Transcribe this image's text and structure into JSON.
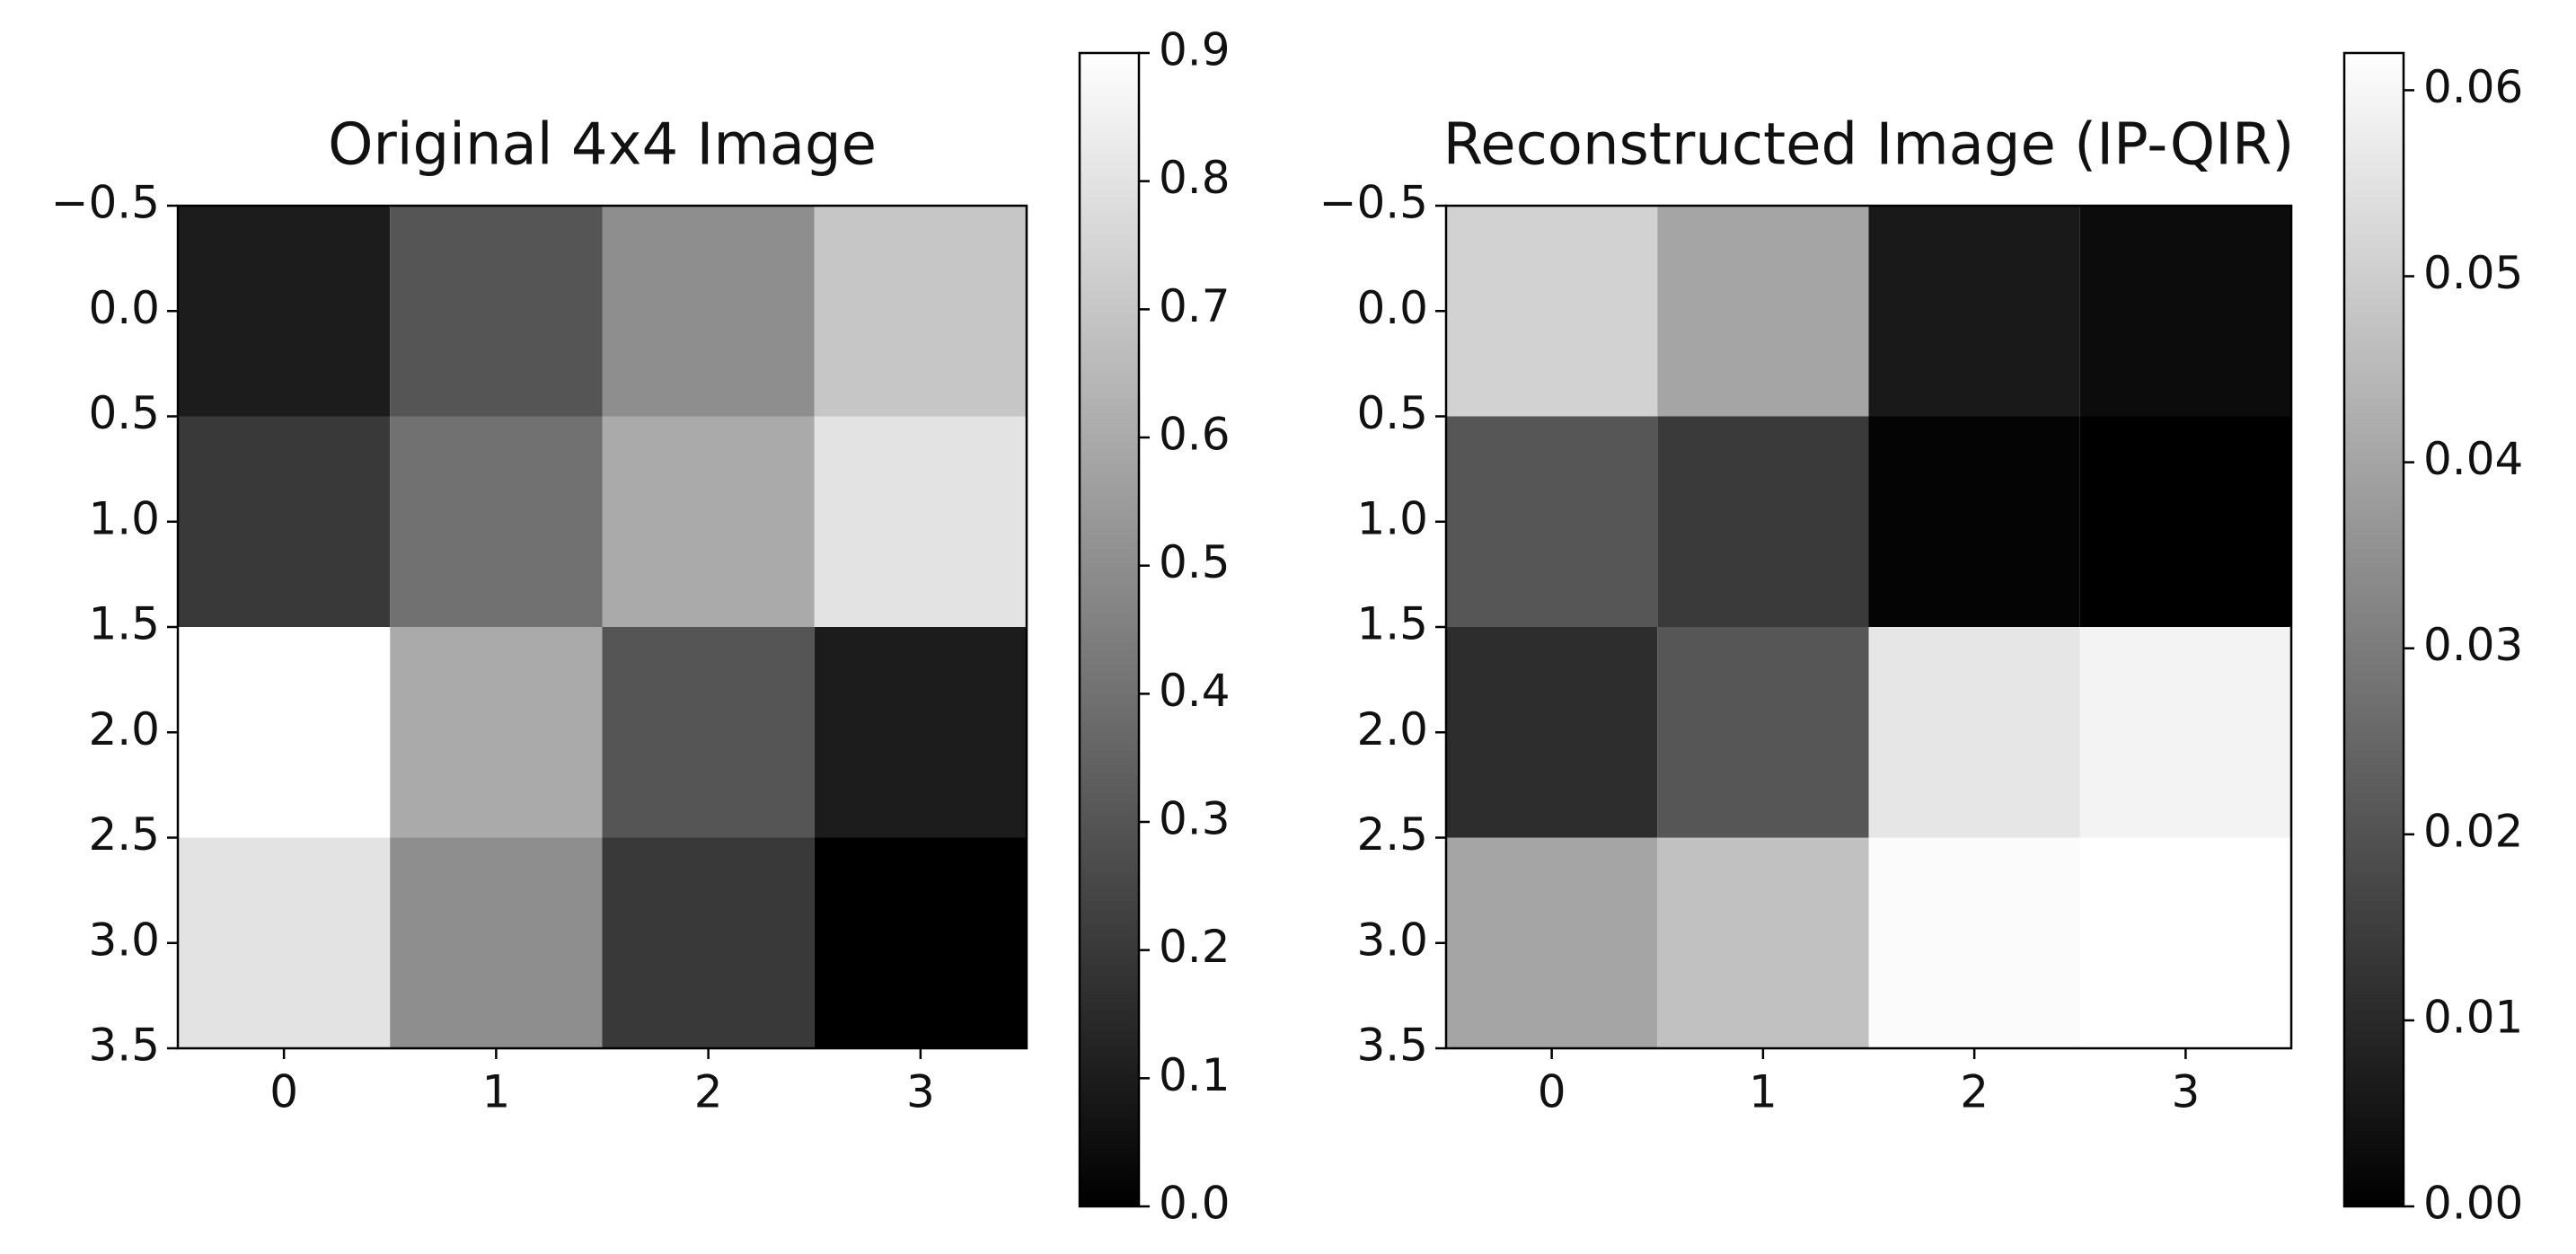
{
  "chart_data": [
    {
      "type": "heatmap",
      "title": "Original 4x4 Image",
      "colormap": "gray",
      "values": [
        [
          0.1,
          0.3,
          0.5,
          0.7
        ],
        [
          0.2,
          0.4,
          0.6,
          0.8
        ],
        [
          0.9,
          0.6,
          0.3,
          0.1
        ],
        [
          0.8,
          0.5,
          0.2,
          0.0
        ]
      ],
      "xlim": [
        -0.5,
        3.5
      ],
      "ylim": [
        3.5,
        -0.5
      ],
      "xticks": [
        0,
        1,
        2,
        3
      ],
      "yticks": [
        {
          "value": -0.5,
          "label": "−0.5"
        },
        {
          "value": 0,
          "label": "0.0"
        },
        0.5,
        {
          "value": 1,
          "label": "1.0"
        },
        1.5,
        {
          "value": 2,
          "label": "2.0"
        },
        2.5,
        {
          "value": 3,
          "label": "3.0"
        },
        3.5
      ],
      "clim": [
        0,
        0.9
      ],
      "cticks": [
        {
          "value": 0,
          "label": "0.0"
        },
        0.1,
        0.2,
        0.3,
        0.4,
        0.5,
        0.6,
        0.7,
        0.8,
        0.9
      ]
    },
    {
      "type": "heatmap",
      "title": "Reconstructed Image (IP-QIR)",
      "colormap": "gray",
      "values": [
        [
          0.051,
          0.04,
          0.006,
          0.003
        ],
        [
          0.021,
          0.014,
          0.001,
          0.0
        ],
        [
          0.011,
          0.021,
          0.056,
          0.059
        ],
        [
          0.04,
          0.047,
          0.061,
          0.062
        ]
      ],
      "xlim": [
        -0.5,
        3.5
      ],
      "ylim": [
        3.5,
        -0.5
      ],
      "xticks": [
        0,
        1,
        2,
        3
      ],
      "yticks": [
        {
          "value": -0.5,
          "label": "−0.5"
        },
        {
          "value": 0,
          "label": "0.0"
        },
        0.5,
        {
          "value": 1,
          "label": "1.0"
        },
        1.5,
        {
          "value": 2,
          "label": "2.0"
        },
        2.5,
        {
          "value": 3,
          "label": "3.0"
        },
        3.5
      ],
      "clim": [
        0,
        0.062
      ],
      "cticks": [
        {
          "value": 0,
          "label": "0.00"
        },
        0.01,
        0.02,
        0.03,
        0.04,
        0.05,
        0.06
      ]
    }
  ]
}
